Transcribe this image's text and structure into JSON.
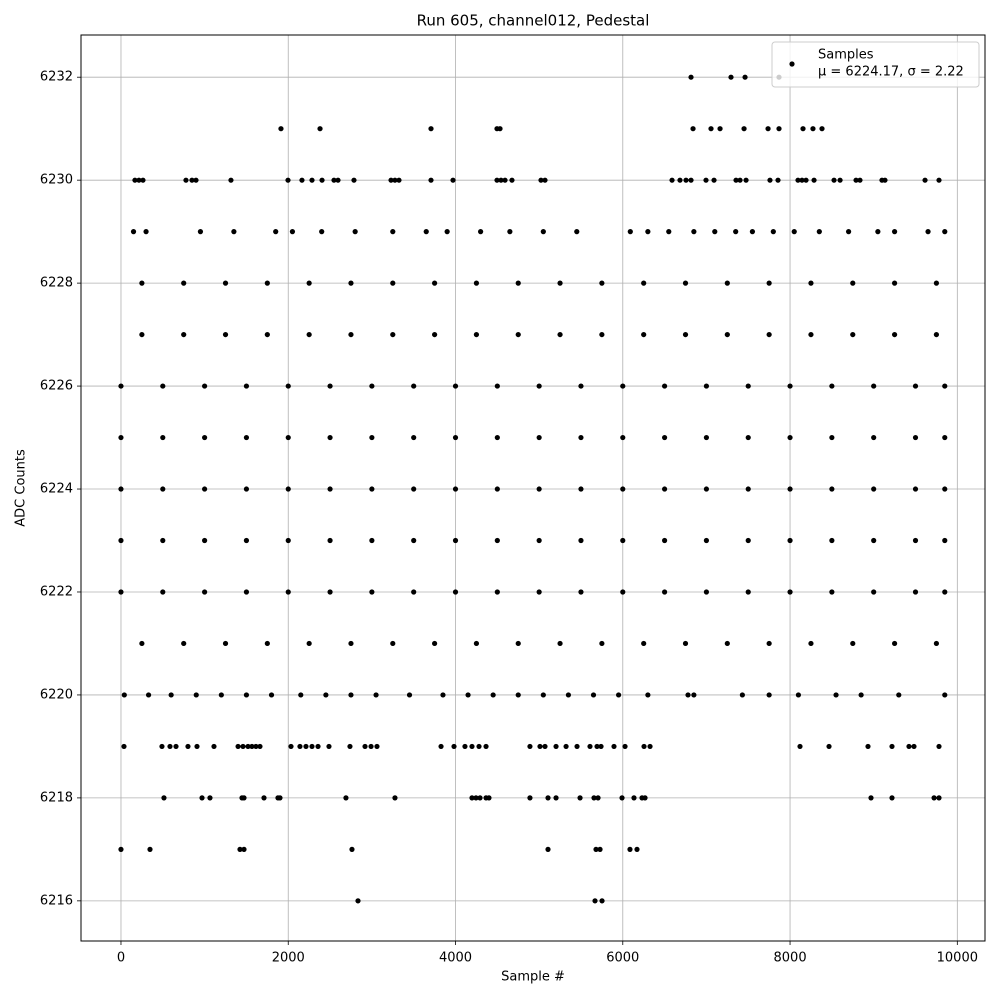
{
  "chart_data": {
    "type": "scatter",
    "title": "Run 605, channel012, Pedestal",
    "xlabel": "Sample #",
    "ylabel": "ADC Counts",
    "xlim": [
      -478,
      10331
    ],
    "xticks": [
      0,
      2000,
      4000,
      6000,
      8000,
      10000
    ],
    "ylim": [
      6215.22,
      6232.82
    ],
    "yticks": [
      6216,
      6218,
      6220,
      6222,
      6224,
      6226,
      6228,
      6230,
      6232
    ],
    "grid": true,
    "legend": "upper right",
    "legend_stats": "μ = 6224.17, σ = 2.22",
    "series": [
      {
        "name": "Samples",
        "color": "#000000",
        "x": [
          2834,
          5668,
          5752,
          0,
          347,
          1423,
          1471,
          2762,
          5106,
          5680,
          5728,
          6086,
          6170,
          514,
          969,
          1064,
          1447,
          1471,
          1710,
          1877,
          1901,
          2690,
          3276,
          4197,
          4245,
          4293,
          4365,
          4400,
          4890,
          5106,
          5202,
          5489,
          5656,
          5704,
          5991,
          6134,
          6230,
          6266,
          8968,
          9219,
          9722,
          9781,
          36,
          490,
          586,
          658,
          801,
          909,
          1112,
          1400,
          1459,
          1519,
          1566,
          1614,
          1662,
          2033,
          2140,
          2212,
          2284,
          2356,
          2487,
          2738,
          2918,
          2990,
          3061,
          3827,
          3982,
          4113,
          4197,
          4281,
          4365,
          4890,
          5010,
          5070,
          5202,
          5322,
          5453,
          5608,
          5692,
          5740,
          5895,
          6027,
          6254,
          6326,
          8119,
          8466,
          8932,
          9219,
          9422,
          9482,
          9781,
          40,
          330,
          600,
          900,
          1200,
          1500,
          1800,
          2150,
          2450,
          2750,
          3050,
          3450,
          3850,
          4150,
          4450,
          4750,
          5050,
          5350,
          5650,
          5950,
          6300,
          6780,
          6850,
          7430,
          7750,
          8100,
          8550,
          8850,
          9300,
          9850,
          250,
          750,
          1250,
          1750,
          2250,
          2750,
          3250,
          3750,
          4250,
          4750,
          5250,
          5750,
          6250,
          6750,
          7250,
          7750,
          8250,
          8750,
          9250,
          9750,
          0,
          500,
          1000,
          1500,
          2000,
          2500,
          3000,
          3500,
          4000,
          4500,
          5000,
          5500,
          6000,
          6500,
          7000,
          7500,
          8000,
          8500,
          9000,
          9500,
          9850,
          0,
          500,
          1000,
          1500,
          2000,
          2500,
          3000,
          3500,
          4000,
          4500,
          5000,
          5500,
          6000,
          6500,
          7000,
          7500,
          8000,
          8500,
          9000,
          9500,
          9850,
          0,
          500,
          1000,
          1500,
          2000,
          2500,
          3000,
          3500,
          4000,
          4500,
          5000,
          5500,
          6000,
          6500,
          7000,
          7500,
          8000,
          8500,
          9000,
          9500,
          9850,
          0,
          500,
          1000,
          1500,
          2000,
          2500,
          3000,
          3500,
          4000,
          4500,
          5000,
          5500,
          6000,
          6500,
          7000,
          7500,
          8000,
          8500,
          9000,
          9500,
          9850,
          0,
          500,
          1000,
          1500,
          2000,
          2500,
          3000,
          3500,
          4000,
          4500,
          5000,
          5500,
          6000,
          6500,
          7000,
          7500,
          8000,
          8500,
          9000,
          9500,
          9850,
          250,
          750,
          1250,
          1750,
          2250,
          2750,
          3250,
          3750,
          4250,
          4750,
          5250,
          5750,
          6250,
          6750,
          7250,
          7750,
          8250,
          8750,
          9250,
          9750,
          250,
          750,
          1250,
          1750,
          2250,
          2750,
          3250,
          3750,
          4250,
          4750,
          5250,
          5750,
          6250,
          6750,
          7250,
          7750,
          8250,
          8750,
          9250,
          9750,
          150,
          300,
          950,
          1350,
          1850,
          2050,
          2400,
          2800,
          3250,
          3650,
          3900,
          4300,
          4650,
          5050,
          5450,
          6090,
          6300,
          6550,
          6850,
          7100,
          7350,
          7550,
          7800,
          8050,
          8350,
          8700,
          9050,
          9250,
          9650,
          9850,
          167,
          215,
          263,
          777,
          849,
          897,
          1315,
          1997,
          2164,
          2284,
          2404,
          2547,
          2595,
          2786,
          3229,
          3276,
          3324,
          3707,
          3970,
          4496,
          4544,
          4592,
          4675,
          5022,
          5070,
          6589,
          6684,
          6756,
          6816,
          6995,
          7091,
          7354,
          7402,
          7474,
          7760,
          7856,
          8095,
          8143,
          8191,
          8287,
          8526,
          8598,
          8789,
          8836,
          9099,
          9135,
          9614,
          9781,
          1913,
          2380,
          3707,
          4496,
          4532,
          6840,
          7055,
          7163,
          7450,
          7737,
          7868,
          8155,
          8274,
          8382,
          6816,
          7294,
          7462,
          7868
        ],
        "values": [
          6216,
          6216,
          6216,
          6217,
          6217,
          6217,
          6217,
          6217,
          6217,
          6217,
          6217,
          6217,
          6217,
          6218,
          6218,
          6218,
          6218,
          6218,
          6218,
          6218,
          6218,
          6218,
          6218,
          6218,
          6218,
          6218,
          6218,
          6218,
          6218,
          6218,
          6218,
          6218,
          6218,
          6218,
          6218,
          6218,
          6218,
          6218,
          6218,
          6218,
          6218,
          6218,
          6219,
          6219,
          6219,
          6219,
          6219,
          6219,
          6219,
          6219,
          6219,
          6219,
          6219,
          6219,
          6219,
          6219,
          6219,
          6219,
          6219,
          6219,
          6219,
          6219,
          6219,
          6219,
          6219,
          6219,
          6219,
          6219,
          6219,
          6219,
          6219,
          6219,
          6219,
          6219,
          6219,
          6219,
          6219,
          6219,
          6219,
          6219,
          6219,
          6219,
          6219,
          6219,
          6219,
          6219,
          6219,
          6219,
          6219,
          6219,
          6219,
          6220,
          6220,
          6220,
          6220,
          6220,
          6220,
          6220,
          6220,
          6220,
          6220,
          6220,
          6220,
          6220,
          6220,
          6220,
          6220,
          6220,
          6220,
          6220,
          6220,
          6220,
          6220,
          6220,
          6220,
          6220,
          6220,
          6220,
          6220,
          6220,
          6220,
          6221,
          6221,
          6221,
          6221,
          6221,
          6221,
          6221,
          6221,
          6221,
          6221,
          6221,
          6221,
          6221,
          6221,
          6221,
          6221,
          6221,
          6221,
          6221,
          6221,
          6222,
          6222,
          6222,
          6222,
          6222,
          6222,
          6222,
          6222,
          6222,
          6222,
          6222,
          6222,
          6222,
          6222,
          6222,
          6222,
          6222,
          6222,
          6222,
          6222,
          6222,
          6223,
          6223,
          6223,
          6223,
          6223,
          6223,
          6223,
          6223,
          6223,
          6223,
          6223,
          6223,
          6223,
          6223,
          6223,
          6223,
          6223,
          6223,
          6223,
          6223,
          6223,
          6224,
          6224,
          6224,
          6224,
          6224,
          6224,
          6224,
          6224,
          6224,
          6224,
          6224,
          6224,
          6224,
          6224,
          6224,
          6224,
          6224,
          6224,
          6224,
          6224,
          6224,
          6225,
          6225,
          6225,
          6225,
          6225,
          6225,
          6225,
          6225,
          6225,
          6225,
          6225,
          6225,
          6225,
          6225,
          6225,
          6225,
          6225,
          6225,
          6225,
          6225,
          6225,
          6226,
          6226,
          6226,
          6226,
          6226,
          6226,
          6226,
          6226,
          6226,
          6226,
          6226,
          6226,
          6226,
          6226,
          6226,
          6226,
          6226,
          6226,
          6226,
          6226,
          6226,
          6227,
          6227,
          6227,
          6227,
          6227,
          6227,
          6227,
          6227,
          6227,
          6227,
          6227,
          6227,
          6227,
          6227,
          6227,
          6227,
          6227,
          6227,
          6227,
          6227,
          6228,
          6228,
          6228,
          6228,
          6228,
          6228,
          6228,
          6228,
          6228,
          6228,
          6228,
          6228,
          6228,
          6228,
          6228,
          6228,
          6228,
          6228,
          6228,
          6228,
          6229,
          6229,
          6229,
          6229,
          6229,
          6229,
          6229,
          6229,
          6229,
          6229,
          6229,
          6229,
          6229,
          6229,
          6229,
          6229,
          6229,
          6229,
          6229,
          6229,
          6229,
          6229,
          6229,
          6229,
          6229,
          6229,
          6229,
          6229,
          6229,
          6229,
          6230,
          6230,
          6230,
          6230,
          6230,
          6230,
          6230,
          6230,
          6230,
          6230,
          6230,
          6230,
          6230,
          6230,
          6230,
          6230,
          6230,
          6230,
          6230,
          6230,
          6230,
          6230,
          6230,
          6230,
          6230,
          6230,
          6230,
          6230,
          6230,
          6230,
          6230,
          6230,
          6230,
          6230,
          6230,
          6230,
          6230,
          6230,
          6230,
          6230,
          6230,
          6230,
          6230,
          6230,
          6230,
          6230,
          6230,
          6230,
          6231,
          6231,
          6231,
          6231,
          6231,
          6231,
          6231,
          6231,
          6231,
          6231,
          6231,
          6231,
          6231,
          6231,
          6232,
          6232,
          6232,
          6232
        ]
      }
    ]
  }
}
